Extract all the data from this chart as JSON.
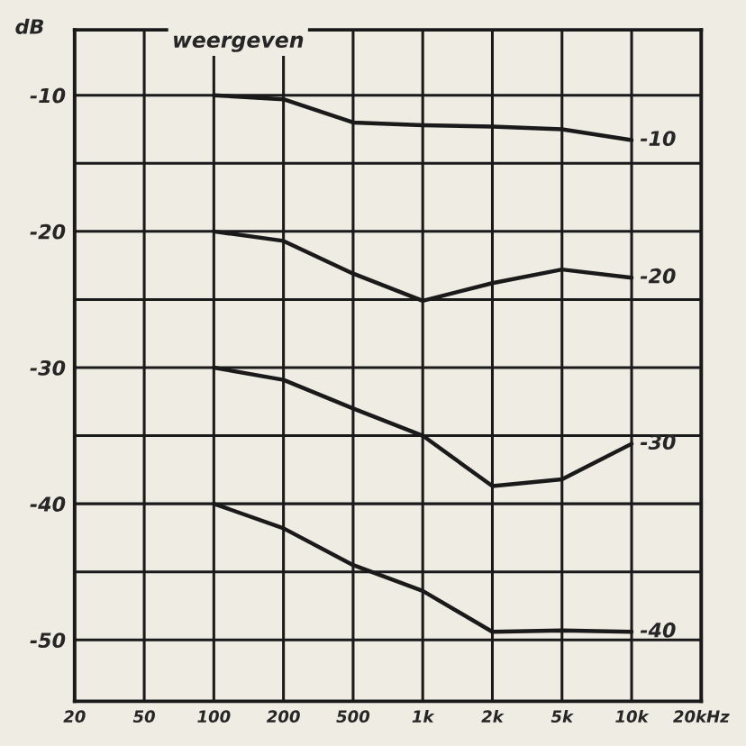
{
  "chart_data": {
    "type": "line",
    "title": "weergeven",
    "ylabel": "dB",
    "categories": [
      "20",
      "50",
      "100",
      "200",
      "500",
      "1k",
      "2k",
      "5k",
      "10k",
      "20kHz"
    ],
    "series": [
      {
        "name": "-10",
        "color": "#1a1a1a",
        "values": [
          null,
          null,
          -10,
          -10.3,
          -12,
          -12.2,
          -12.3,
          -12.5,
          -13.3,
          null
        ]
      },
      {
        "name": "-20",
        "color": "#1a1a1a",
        "values": [
          null,
          null,
          -20,
          -20.7,
          -23.1,
          -25.1,
          -23.8,
          -22.8,
          -23.4,
          null
        ]
      },
      {
        "name": "-30",
        "color": "#1a1a1a",
        "values": [
          null,
          null,
          -30,
          -30.9,
          -33,
          -35,
          -38.7,
          -38.2,
          -35.6,
          null
        ]
      },
      {
        "name": "-40",
        "color": "#1a1a1a",
        "values": [
          null,
          null,
          -40,
          -41.8,
          -44.5,
          -46.4,
          -49.4,
          -49.3,
          -49.4,
          null
        ]
      }
    ],
    "ylim": [
      -54.5,
      -5.2
    ],
    "yticks": [
      {
        "value": -10,
        "label": "-10"
      },
      {
        "value": -15,
        "label": null
      },
      {
        "value": -20,
        "label": "-20"
      },
      {
        "value": -25,
        "label": null
      },
      {
        "value": -30,
        "label": "-30"
      },
      {
        "value": -35,
        "label": null
      },
      {
        "value": -40,
        "label": "-40"
      },
      {
        "value": -45,
        "label": null
      },
      {
        "value": -50,
        "label": "-50"
      }
    ],
    "grid": true,
    "legend": false,
    "marker": "none",
    "line_style": "solid"
  }
}
